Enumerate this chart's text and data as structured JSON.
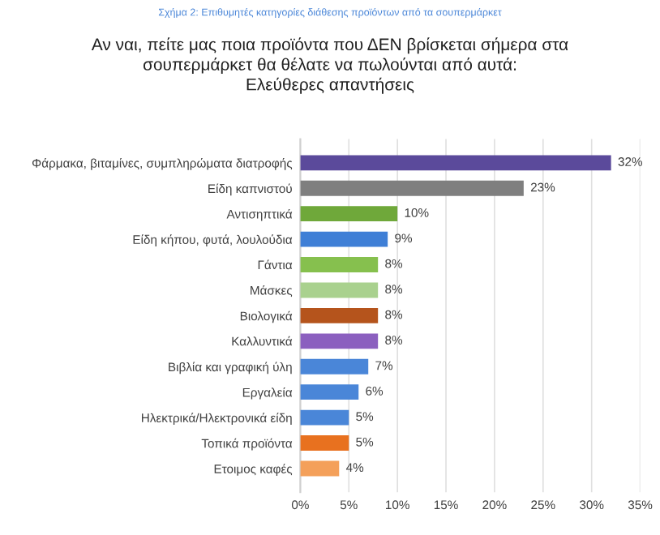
{
  "chart_data": {
    "type": "bar",
    "orientation": "horizontal",
    "subtitle": "Σχήμα 2: Επιθυμητές κατηγορίες διάθεσης προϊόντων από τα σουπερμάρκετ",
    "title": "Αν ναι, πείτε μας ποια προϊόντα που ΔΕΝ βρίσκεται σήμερα στα\nσουπερμάρκετ θα θέλατε να πωλούνται από αυτά:\nΕλεύθερες απαντήσεις",
    "categories": [
      "Φάρμακα, βιταμίνες, συμπληρώματα διατροφής",
      "Είδη καπνιστού",
      "Αντισηπτικά",
      "Είδη κήπου, φυτά, λουλούδια",
      "Γάντια",
      "Μάσκες",
      "Βιολογικά",
      "Καλλυντικά",
      "Βιβλία και γραφική ύλη",
      "Εργαλεία",
      "Ηλεκτρικά/Ηλεκτρονικά είδη",
      "Τοπικά προϊόντα",
      "Ετοιμος καφές"
    ],
    "values": [
      32,
      23,
      10,
      9,
      8,
      8,
      8,
      8,
      7,
      6,
      5,
      5,
      4
    ],
    "value_labels": [
      "32%",
      "23%",
      "10%",
      "9%",
      "8%",
      "8%",
      "8%",
      "8%",
      "7%",
      "6%",
      "5%",
      "5%",
      "4%"
    ],
    "colors": [
      "#5b4a9b",
      "#7f7f7f",
      "#6fa83a",
      "#3f7fd6",
      "#86c04e",
      "#a9d18e",
      "#b5541c",
      "#8b5fbf",
      "#4a86d8",
      "#4a86d8",
      "#4a86d8",
      "#e8711f",
      "#f4a05a"
    ],
    "xlim": [
      0,
      35
    ],
    "xticks": [
      {
        "value": 0,
        "label": "0%"
      },
      {
        "value": 5,
        "label": "5%"
      },
      {
        "value": 10,
        "label": "10%"
      },
      {
        "value": 15,
        "label": "15%"
      },
      {
        "value": 20,
        "label": "20%"
      },
      {
        "value": 25,
        "label": "25%"
      },
      {
        "value": 30,
        "label": "30%"
      },
      {
        "value": 35,
        "label": "35%"
      }
    ],
    "grid": "x"
  }
}
